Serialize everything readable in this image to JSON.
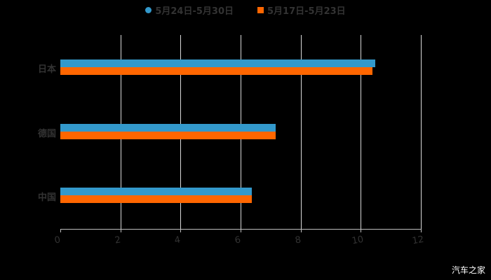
{
  "chart_data": {
    "type": "bar",
    "orientation": "horizontal",
    "title": "",
    "categories": [
      "日本",
      "德国",
      "中国"
    ],
    "series": [
      {
        "name": "5月24日-5月30日",
        "color": "#3399cc",
        "values": [
          10.49,
          7.17,
          6.38
        ]
      },
      {
        "name": "5月17日-5月23日",
        "color": "#ff6600",
        "values": [
          10.4,
          7.17,
          6.38
        ]
      }
    ],
    "xlabel": "",
    "ylabel": "",
    "xlim": [
      0,
      12
    ],
    "xticks": [
      "0",
      "2",
      "4",
      "6",
      "8",
      "10",
      "12"
    ],
    "grid": true,
    "legend_position": "top"
  },
  "legend": {
    "items": [
      {
        "label": "5月24日-5月30日",
        "color": "#3399cc"
      },
      {
        "label": "5月17日-5月23日",
        "color": "#ff6600"
      }
    ]
  },
  "watermark": "汽车之家"
}
